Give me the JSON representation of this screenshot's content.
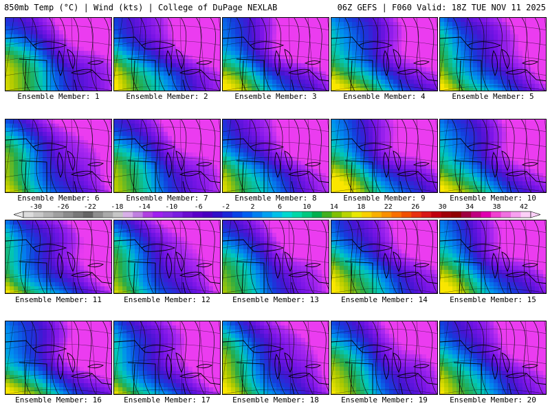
{
  "header": {
    "left_title": "850mb Temp (°C) | Wind (kts) | College of DuPage NEXLAB",
    "right_title": "06Z GEFS | F060 Valid: 18Z TUE NOV 11 2025"
  },
  "members": [
    {
      "label": "Ensemble Member: 1"
    },
    {
      "label": "Ensemble Member: 2"
    },
    {
      "label": "Ensemble Member: 3"
    },
    {
      "label": "Ensemble Member: 4"
    },
    {
      "label": "Ensemble Member: 5"
    },
    {
      "label": "Ensemble Member: 6"
    },
    {
      "label": "Ensemble Member: 7"
    },
    {
      "label": "Ensemble Member: 8"
    },
    {
      "label": "Ensemble Member: 9"
    },
    {
      "label": "Ensemble Member: 10"
    },
    {
      "label": "Ensemble Member: 11"
    },
    {
      "label": "Ensemble Member: 12"
    },
    {
      "label": "Ensemble Member: 13"
    },
    {
      "label": "Ensemble Member: 14"
    },
    {
      "label": "Ensemble Member: 15"
    },
    {
      "label": "Ensemble Member: 16"
    },
    {
      "label": "Ensemble Member: 17"
    },
    {
      "label": "Ensemble Member: 18"
    },
    {
      "label": "Ensemble Member: 19"
    },
    {
      "label": "Ensemble Member: 20"
    }
  ],
  "colorbar": {
    "labels": [
      "-30",
      "-26",
      "-22",
      "-18",
      "-14",
      "-10",
      "-6",
      "-2",
      "2",
      "6",
      "10",
      "14",
      "18",
      "22",
      "26",
      "30",
      "34",
      "38",
      "42"
    ],
    "colors": [
      "#dcdcdc",
      "#c8c8c8",
      "#b4b4b4",
      "#a0a0a0",
      "#8c8c8c",
      "#787878",
      "#646464",
      "#8e8e8e",
      "#aaaaaa",
      "#c6c6c6",
      "#d8b0e8",
      "#c080e0",
      "#b040e0",
      "#a020f0",
      "#8a2be2",
      "#7a1fe0",
      "#6a0fd0",
      "#5a00c8",
      "#4800c0",
      "#3010c8",
      "#1c28d8",
      "#0a44e6",
      "#0060f0",
      "#0080f0",
      "#00a0f0",
      "#00c0e8",
      "#00d8d0",
      "#00d8a8",
      "#00c880",
      "#00b050",
      "#40b020",
      "#80c000",
      "#b8d400",
      "#e8e800",
      "#f8d000",
      "#f8b000",
      "#f89000",
      "#f87000",
      "#f05000",
      "#e83010",
      "#d81818",
      "#c00010",
      "#a00008",
      "#900000",
      "#a00040",
      "#c00080",
      "#e000b0",
      "#f040d0",
      "#f070e0",
      "#f8a0f0",
      "#fcd0f8"
    ]
  }
}
